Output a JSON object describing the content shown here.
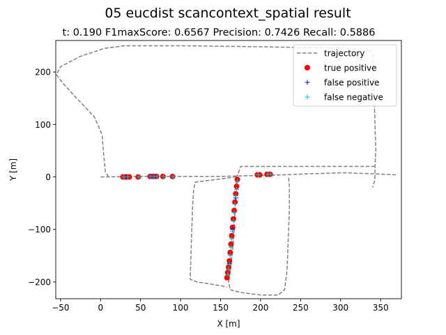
{
  "chart_data": {
    "type": "scatter",
    "title": "05 eucdist scancontext_spatial result",
    "subtitle": "t:  0.190  F1maxScore:  0.6567  Precision:  0.7426  Recall:  0.5886",
    "xlabel": "X [m]",
    "ylabel": "Y [m]",
    "xlim": [
      -56,
      376
    ],
    "ylim": [
      -232,
      260
    ],
    "xticks": [
      "-50",
      "0",
      "50",
      "100",
      "150",
      "200",
      "250",
      "300",
      "350"
    ],
    "yticks": [
      "-200",
      "-100",
      "0",
      "100",
      "200"
    ],
    "legend_position": "upper-right",
    "legend": [
      {
        "label": "trajectory",
        "marker": "dashed-line",
        "color": "#808080"
      },
      {
        "label": "true positive",
        "marker": "circle",
        "color": "#ff0000"
      },
      {
        "label": "false positive",
        "marker": "plus",
        "color": "#0000ff"
      },
      {
        "label": "false negative",
        "marker": "plus",
        "color": "#00bfbf"
      }
    ],
    "series": [
      {
        "name": "trajectory",
        "style": "dashed-line",
        "color": "#808080",
        "paths": [
          [
            [
              0,
              0
            ],
            [
              10,
              0
            ],
            [
              35,
              1
            ],
            [
              100,
              1
            ],
            [
              150,
              1
            ],
            [
              175,
              2
            ],
            [
              230,
              4
            ],
            [
              260,
              6
            ],
            [
              305,
              8
            ],
            [
              340,
              6
            ],
            [
              370,
              4
            ]
          ],
          [
            [
              10,
              0
            ],
            [
              6,
              10
            ],
            [
              4,
              40
            ],
            [
              2,
              80
            ],
            [
              -8,
              115
            ],
            [
              -30,
              150
            ],
            [
              -48,
              180
            ],
            [
              -55,
              195
            ],
            [
              -50,
              210
            ],
            [
              -25,
              230
            ],
            [
              5,
              245
            ],
            [
              30,
              250
            ],
            [
              100,
              250
            ],
            [
              200,
              248
            ],
            [
              310,
              245
            ],
            [
              325,
              243
            ],
            [
              337,
              240
            ],
            [
              340,
              235
            ],
            [
              341,
              200
            ],
            [
              342,
              150
            ],
            [
              343,
              100
            ],
            [
              344,
              50
            ],
            [
              343,
              20
            ],
            [
              343,
              0
            ],
            [
              342,
              -10
            ],
            [
              340,
              -20
            ]
          ],
          [
            [
              343,
              20
            ],
            [
              175,
              20
            ],
            [
              173,
              10
            ],
            [
              170,
              0
            ],
            [
              169,
              -30
            ],
            [
              168,
              -70
            ],
            [
              166,
              -120
            ],
            [
              163,
              -170
            ],
            [
              160,
              -200
            ],
            [
              162,
              -215
            ],
            [
              175,
              -220
            ],
            [
              200,
              -225
            ],
            [
              222,
              -225
            ],
            [
              230,
              -215
            ],
            [
              233,
              -180
            ],
            [
              234,
              -140
            ],
            [
              235,
              -100
            ],
            [
              236,
              -60
            ],
            [
              236,
              -20
            ],
            [
              235,
              0
            ]
          ],
          [
            [
              170,
              0
            ],
            [
              118,
              -10
            ],
            [
              116,
              -30
            ],
            [
              115,
              -60
            ],
            [
              114,
              -100
            ],
            [
              113,
              -150
            ],
            [
              112,
              -195
            ],
            [
              120,
              -200
            ],
            [
              150,
              -207
            ],
            [
              158,
              -210
            ]
          ]
        ]
      },
      {
        "name": "true positive",
        "style": "circle",
        "color": "#ff0000",
        "points": [
          [
            28,
            0
          ],
          [
            31,
            0
          ],
          [
            33,
            0
          ],
          [
            36,
            0
          ],
          [
            47,
            0
          ],
          [
            62,
            1
          ],
          [
            66,
            1
          ],
          [
            70,
            1
          ],
          [
            78,
            1
          ],
          [
            90,
            1
          ],
          [
            196,
            4
          ],
          [
            199,
            4
          ],
          [
            208,
            5
          ],
          [
            212,
            5
          ],
          [
            171,
            -5
          ],
          [
            170,
            -18
          ],
          [
            169,
            -32
          ],
          [
            168,
            -48
          ],
          [
            167,
            -64
          ],
          [
            166,
            -80
          ],
          [
            165,
            -96
          ],
          [
            164,
            -112
          ],
          [
            163,
            -128
          ],
          [
            162,
            -144
          ],
          [
            161,
            -160
          ],
          [
            160,
            -172
          ],
          [
            159,
            -182
          ],
          [
            158,
            -192
          ]
        ]
      },
      {
        "name": "false positive",
        "style": "plus",
        "color": "#0000ff",
        "points": [
          [
            32,
            0
          ],
          [
            64,
            1
          ],
          [
            68,
            1
          ],
          [
            169,
            -40
          ],
          [
            165,
            -100
          ],
          [
            161,
            -165
          ]
        ]
      },
      {
        "name": "false negative",
        "style": "plus",
        "color": "#00bfbf",
        "points": [
          [
            29,
            0
          ],
          [
            34,
            0
          ],
          [
            48,
            0
          ],
          [
            63,
            1
          ],
          [
            67,
            1
          ],
          [
            71,
            1
          ],
          [
            79,
            1
          ],
          [
            91,
            1
          ],
          [
            197,
            4
          ],
          [
            209,
            5
          ],
          [
            213,
            5
          ],
          [
            171,
            -8
          ],
          [
            170,
            -24
          ],
          [
            169,
            -36
          ],
          [
            168,
            -52
          ],
          [
            167,
            -68
          ],
          [
            166,
            -84
          ],
          [
            165,
            -104
          ],
          [
            164,
            -118
          ],
          [
            163,
            -134
          ],
          [
            162,
            -150
          ],
          [
            161,
            -166
          ],
          [
            160,
            -176
          ],
          [
            159,
            -186
          ]
        ]
      }
    ]
  }
}
